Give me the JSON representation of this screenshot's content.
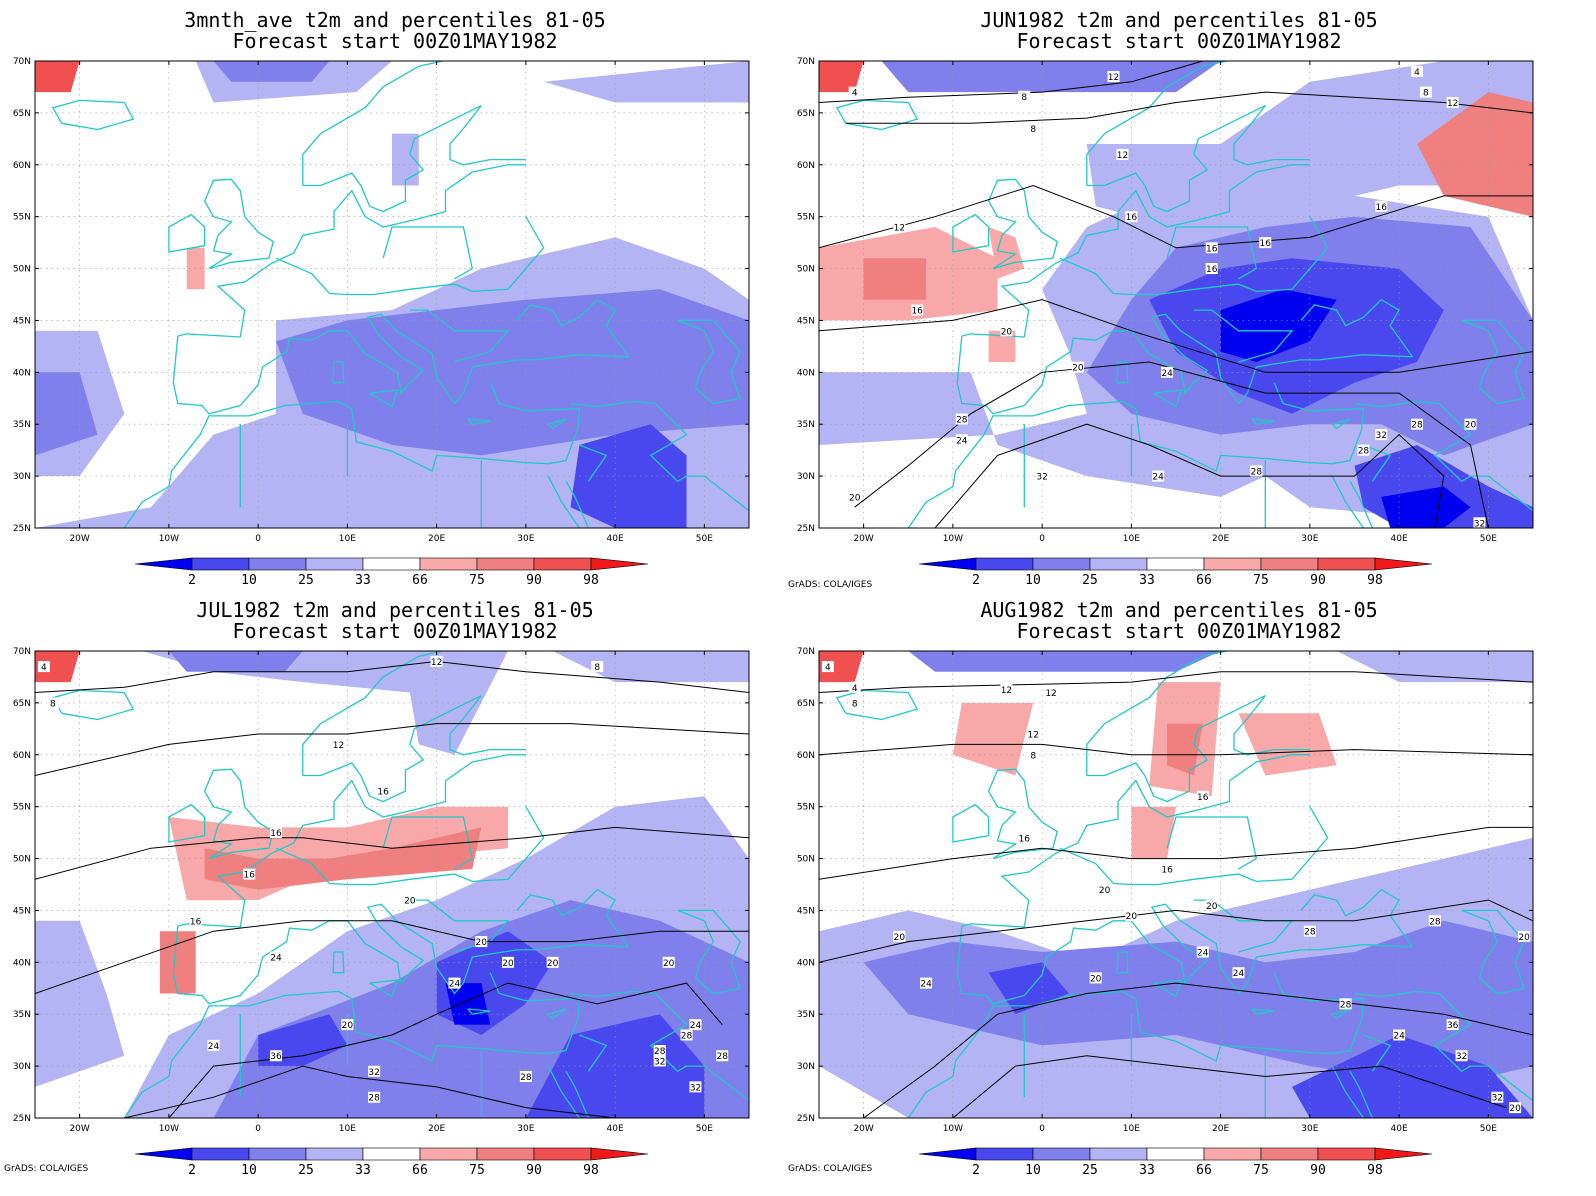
{
  "colors": {
    "blue_2": "#0000f0",
    "blue_10": "#4848ee",
    "blue_25": "#8080ec",
    "blue_33": "#b4b4f4",
    "red_66": "#f8a8a8",
    "red_75": "#f08080",
    "red_90": "#f05050",
    "red_98": "#f01818",
    "coast": "#20c8c8",
    "contour": "#000000"
  },
  "axes": {
    "lat_labels": [
      "70N",
      "65N",
      "60N",
      "55N",
      "50N",
      "45N",
      "40N",
      "35N",
      "30N",
      "25N"
    ],
    "lon_labels": [
      "20W",
      "10W",
      "0",
      "10E",
      "20E",
      "30E",
      "40E",
      "50E"
    ]
  },
  "colorbar": {
    "labels": [
      "2",
      "10",
      "25",
      "33",
      "66",
      "75",
      "90",
      "98"
    ]
  },
  "credit": "GrADS: COLA/IGES",
  "panels": [
    {
      "title1": "3mnth_ave t2m and percentiles 81-05",
      "title2": "Forecast start 00Z01MAY1982",
      "show_credit": false,
      "contour_labels": []
    },
    {
      "title1": "JUN1982 t2m and percentiles 81-05",
      "title2": "Forecast start 00Z01MAY1982",
      "show_credit": true,
      "contour_labels": [
        "4",
        "8",
        "12",
        "8",
        "12",
        "4",
        "8",
        "12",
        "16",
        "12",
        "16",
        "16",
        "16",
        "16",
        "16",
        "20",
        "20",
        "24",
        "28",
        "24",
        "32",
        "28",
        "20",
        "24",
        "32",
        "28",
        "28",
        "20",
        "32"
      ]
    },
    {
      "title1": "JUL1982 t2m and percentiles 81-05",
      "title2": "Forecast start 00Z01MAY1982",
      "show_credit": true,
      "contour_labels": [
        "4",
        "8",
        "12",
        "8",
        "12",
        "16",
        "16",
        "16",
        "16",
        "20",
        "20",
        "20",
        "24",
        "20",
        "20",
        "24",
        "24",
        "20",
        "28",
        "32",
        "28",
        "28",
        "28",
        "32",
        "36",
        "24",
        "28",
        "32"
      ]
    },
    {
      "title1": "AUG1982 t2m and percentiles 81-05",
      "title2": "Forecast start 00Z01MAY1982",
      "show_credit": true,
      "contour_labels": [
        "4",
        "4",
        "8",
        "12",
        "12",
        "12",
        "8",
        "16",
        "16",
        "16",
        "20",
        "20",
        "20",
        "20",
        "24",
        "20",
        "24",
        "24",
        "28",
        "28",
        "20",
        "28",
        "24",
        "36",
        "32",
        "32",
        "20"
      ]
    }
  ]
}
